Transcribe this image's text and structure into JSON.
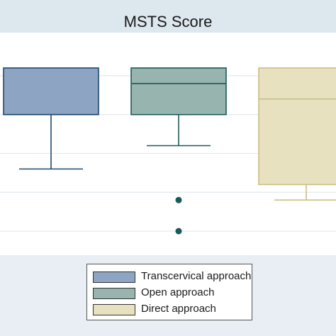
{
  "chart_data": {
    "type": "box",
    "title": "MSTS Score",
    "xlabel": "",
    "ylabel": "",
    "ylim": [
      17.5,
      30.5
    ],
    "grid": true,
    "legend_position": "bottom",
    "series": [
      {
        "name": "Transcervical approach",
        "color": "#8da5c2",
        "stroke": "#1c4a70",
        "whisker_low": 22.5,
        "q1": 26,
        "median": 26,
        "q3": 29,
        "whisker_high": 29,
        "outliers": []
      },
      {
        "name": "Open approach",
        "color": "#97b5ae",
        "stroke": "#1c5a5a",
        "whisker_low": 24,
        "q1": 26,
        "median": 28,
        "q3": 29,
        "whisker_high": 29,
        "outliers": [
          20.5,
          18.5
        ]
      },
      {
        "name": "Direct approach",
        "color": "#e7e1bf",
        "stroke": "#c9bf84",
        "whisker_low": 20.5,
        "q1": 21.5,
        "median": 27,
        "q3": 29,
        "whisker_high": 29,
        "outliers": []
      }
    ]
  },
  "legend": {
    "items": [
      {
        "label": "Transcervical approach",
        "color": "#8da5c2"
      },
      {
        "label": "Open approach",
        "color": "#97b5ae"
      },
      {
        "label": "Direct approach",
        "color": "#e7e1bf"
      }
    ]
  }
}
